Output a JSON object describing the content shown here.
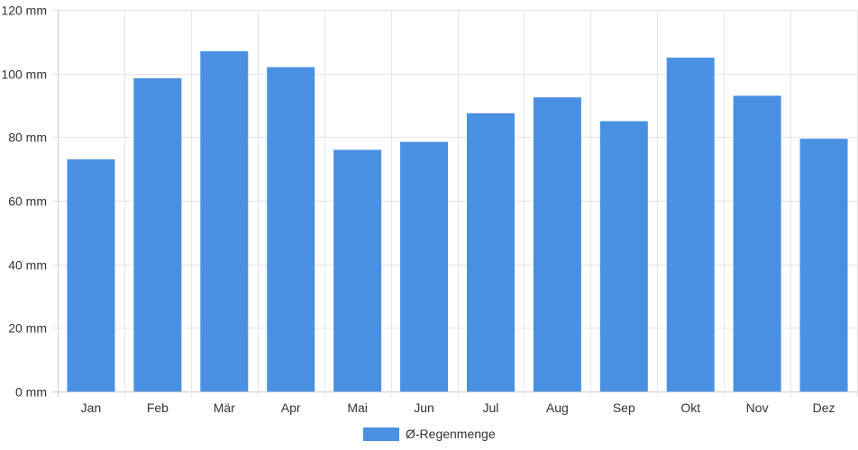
{
  "chart_data": {
    "type": "bar",
    "title": "",
    "xlabel": "",
    "ylabel": "",
    "categories": [
      "Jan",
      "Feb",
      "Mär",
      "Apr",
      "Mai",
      "Jun",
      "Jul",
      "Aug",
      "Sep",
      "Okt",
      "Nov",
      "Dez"
    ],
    "series": [
      {
        "name": "Ø-Regenmenge",
        "color": "#4a90e2",
        "values": [
          73,
          98.5,
          107,
          102,
          76,
          78.5,
          87.5,
          92.5,
          85,
          105,
          93,
          79.5
        ]
      }
    ],
    "ylim": [
      0,
      120
    ],
    "yticks": [
      0,
      20,
      40,
      60,
      80,
      100,
      120
    ],
    "y_unit": "mm",
    "grid": true,
    "legend_position": "bottom"
  }
}
